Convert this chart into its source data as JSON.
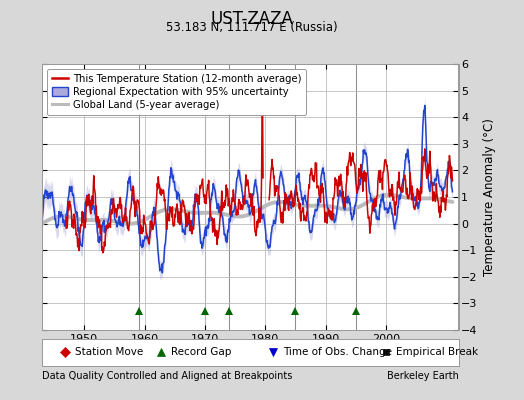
{
  "title": "UST-ZAZA",
  "subtitle": "53.183 N, 111.717 E (Russia)",
  "ylabel": "Temperature Anomaly (°C)",
  "xlabel_left": "Data Quality Controlled and Aligned at Breakpoints",
  "xlabel_right": "Berkeley Earth",
  "ylim": [
    -4,
    6
  ],
  "yticks": [
    -4,
    -3,
    -2,
    -1,
    0,
    1,
    2,
    3,
    4,
    5,
    6
  ],
  "xlim": [
    1943,
    2012
  ],
  "xticks": [
    1950,
    1960,
    1970,
    1980,
    1990,
    2000
  ],
  "background_color": "#d8d8d8",
  "plot_bg_color": "#ffffff",
  "grid_color": "#bbbbbb",
  "record_gap_years": [
    1959,
    1970,
    1974,
    1985,
    1995
  ],
  "station_move_years": [],
  "time_obs_change_years": [],
  "empirical_break_years": [],
  "marker_legend": [
    {
      "label": "Station Move",
      "marker": "D",
      "color": "#cc0000",
      "ms": 5
    },
    {
      "label": "Record Gap",
      "marker": "^",
      "color": "#006600",
      "ms": 6
    },
    {
      "label": "Time of Obs. Change",
      "marker": "v",
      "color": "#0000cc",
      "ms": 6
    },
    {
      "label": "Empirical Break",
      "marker": "s",
      "color": "#111111",
      "ms": 4
    }
  ]
}
